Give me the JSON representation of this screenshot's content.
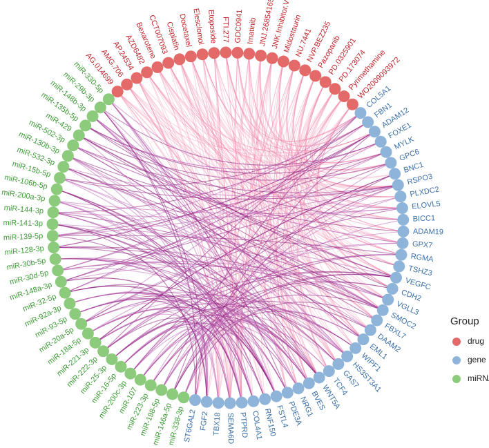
{
  "groups": [
    {
      "name": "drug",
      "nodes": [
        "AG.014699",
        "AMG.706",
        "AP.24534",
        "AZD6482",
        "Bexarotene",
        "CCT007093",
        "Cisplatin",
        "Docetaxel",
        "Elesclomol",
        "Etoposide",
        "FTI.277",
        "GDC0941",
        "Imatinib",
        "JNJ.26854165",
        "JNK.Inhibitor.VIII",
        "Midostaurin",
        "NU.7441",
        "NVP.BEZ235",
        "Pazopanib",
        "PD.0325901",
        "PD.173074",
        "Pyrimethamine",
        "WO2009093972"
      ]
    },
    {
      "name": "gene",
      "nodes": [
        "COL5A1",
        "FBN1",
        "ADAM12",
        "FOXE1",
        "MYLK",
        "GPC6",
        "BNC1",
        "RSPO3",
        "PLXDC2",
        "ELOVL5",
        "BICC1",
        "ADAM19",
        "GPX7",
        "RGMA",
        "TSHZ3",
        "VEGFC",
        "CDH2",
        "VGLL3",
        "SMOC2",
        "FBXL7",
        "DAAM2",
        "EML1",
        "WIPF1",
        "HS3ST3A1",
        "GAS7",
        "TCF4",
        "WNT5A",
        "BVES",
        "NRG1",
        "PDE3A",
        "FSTL4",
        "RNF150",
        "COL4A1",
        "PTPRD",
        "SEMA6D",
        "TBX18",
        "FGF2",
        "ST6GAL2"
      ]
    },
    {
      "name": "miRNA",
      "nodes": [
        "miR-338-3p",
        "miR-146a-5p",
        "miR-198-5p",
        "miR-223-3p",
        "miR-107",
        "miR-200c-3p",
        "miR-16-5p",
        "miR-25-3p",
        "miR-222-3p",
        "miR-221-3p",
        "miR-18a-5p",
        "miR-20a-5p",
        "miR-93-5p",
        "miR-92a-3p",
        "miR-32-5p",
        "miR-148a-3p",
        "miR-30d-5p",
        "miR-30b-5p",
        "miR-128-3p",
        "miR-139-5p",
        "miR-141-3p",
        "miR-144-3p",
        "miR-200a-3p",
        "miR-106b-5p",
        "miR-15b-5p",
        "miR-532-3p",
        "miR-130b-3p",
        "miR-502-3p",
        "miR-429",
        "miR-135b-5p",
        "miR-148b-3p",
        "miR-29b-3p",
        "miR-330-5p"
      ]
    }
  ],
  "legend": {
    "title": "Group",
    "items": [
      "drug",
      "gene",
      "miRNA"
    ]
  }
}
